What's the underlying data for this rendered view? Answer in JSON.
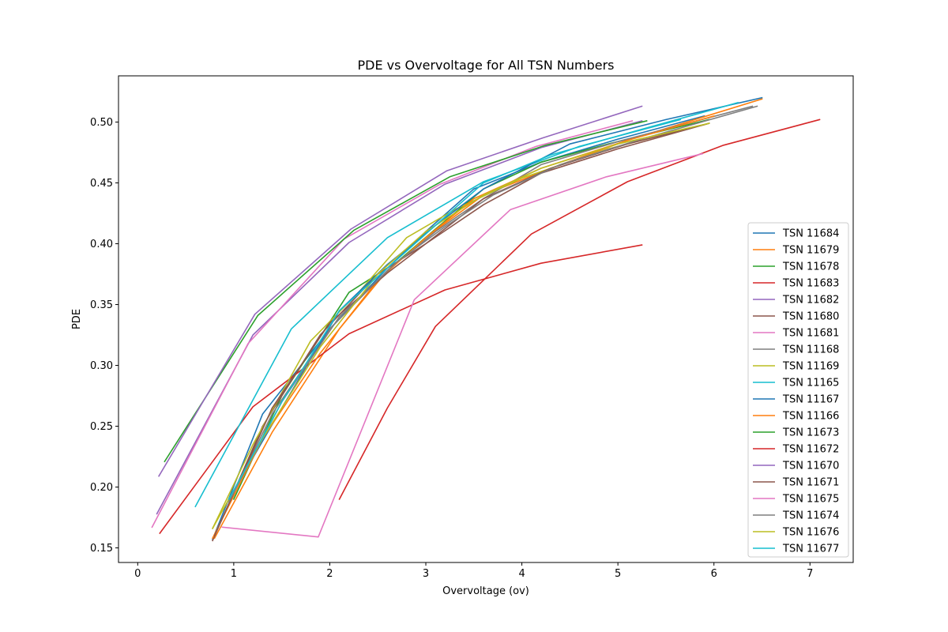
{
  "chart_data": {
    "type": "line",
    "title": "PDE vs Overvoltage for All TSN Numbers",
    "xlabel": "Overvoltage (ov)",
    "ylabel": "PDE",
    "xlim": [
      -0.2,
      7.45
    ],
    "ylim": [
      0.138,
      0.538
    ],
    "xticks": [
      0,
      1,
      2,
      3,
      4,
      5,
      6,
      7
    ],
    "yticks": [
      0.15,
      0.2,
      0.25,
      0.3,
      0.35,
      0.4,
      0.45,
      0.5
    ],
    "ytick_labels": [
      "0.15",
      "0.20",
      "0.25",
      "0.30",
      "0.35",
      "0.40",
      "0.45",
      "0.50"
    ],
    "legend_position": "lower-right",
    "grid": false,
    "series": [
      {
        "name": "TSN 11684",
        "color": "#1f77b4",
        "x": [
          0.78,
          1.3,
          2.0,
          2.6,
          3.0,
          3.5,
          4.2,
          5.0,
          5.9
        ],
        "y": [
          0.157,
          0.26,
          0.33,
          0.38,
          0.41,
          0.445,
          0.467,
          0.486,
          0.505
        ]
      },
      {
        "name": "TSN 11679",
        "color": "#ff7f0e",
        "x": [
          0.8,
          1.4,
          2.1,
          2.6,
          3.0,
          3.6,
          4.3,
          5.1,
          6.5
        ],
        "y": [
          0.158,
          0.245,
          0.33,
          0.378,
          0.405,
          0.44,
          0.462,
          0.485,
          0.519
        ]
      },
      {
        "name": "TSN 11678",
        "color": "#2ca02c",
        "x": [
          1.0,
          1.5,
          2.2,
          2.7,
          3.1,
          3.6,
          4.2,
          4.9,
          5.95
        ],
        "y": [
          0.19,
          0.275,
          0.36,
          0.385,
          0.412,
          0.445,
          0.467,
          0.482,
          0.502
        ]
      },
      {
        "name": "TSN 11683",
        "color": "#d62728",
        "x": [
          0.23,
          1.2,
          2.2,
          3.2,
          4.2,
          5.25
        ],
        "y": [
          0.162,
          0.266,
          0.326,
          0.362,
          0.384,
          0.399
        ]
      },
      {
        "name": "TSN 11682",
        "color": "#9467bd",
        "x": [
          0.2,
          1.2,
          2.2,
          3.2,
          4.2,
          5.25
        ],
        "y": [
          0.178,
          0.325,
          0.401,
          0.449,
          0.479,
          0.501
        ]
      },
      {
        "name": "TSN 11680",
        "color": "#8c564b",
        "x": [
          0.78,
          1.3,
          1.9,
          2.5,
          3.0,
          3.6,
          4.2,
          5.0,
          5.95
        ],
        "y": [
          0.156,
          0.25,
          0.325,
          0.375,
          0.4,
          0.432,
          0.458,
          0.478,
          0.499
        ]
      },
      {
        "name": "TSN 11681",
        "color": "#e377c2",
        "x": [
          0.15,
          1.15,
          2.15,
          3.15,
          4.15,
          5.15
        ],
        "y": [
          0.167,
          0.318,
          0.404,
          0.449,
          0.48,
          0.501
        ]
      },
      {
        "name": "TSN 11168",
        "color": "#7f7f7f",
        "x": [
          0.95,
          1.4,
          2.0,
          2.6,
          3.1,
          3.6,
          4.2,
          5.0,
          6.4
        ],
        "y": [
          0.188,
          0.26,
          0.33,
          0.378,
          0.41,
          0.437,
          0.465,
          0.484,
          0.513
        ]
      },
      {
        "name": "TSN 11169",
        "color": "#bcbd22",
        "x": [
          0.78,
          1.2,
          1.8,
          2.3,
          2.8,
          3.3,
          4.0,
          4.9,
          5.95
        ],
        "y": [
          0.166,
          0.235,
          0.32,
          0.36,
          0.405,
          0.428,
          0.454,
          0.478,
          0.499
        ]
      },
      {
        "name": "TSN 11165",
        "color": "#17becf",
        "x": [
          0.6,
          1.6,
          2.6,
          3.6,
          4.6,
          5.65
        ],
        "y": [
          0.184,
          0.33,
          0.405,
          0.451,
          0.48,
          0.502
        ]
      },
      {
        "name": "TSN 11167",
        "color": "#1f77b4",
        "x": [
          0.95,
          1.5,
          2.1,
          2.6,
          3.1,
          3.6,
          4.5,
          5.5,
          6.5
        ],
        "y": [
          0.19,
          0.265,
          0.345,
          0.383,
          0.415,
          0.445,
          0.482,
          0.502,
          0.52
        ]
      },
      {
        "name": "TSN 11166",
        "color": "#ff7f0e",
        "x": [
          0.78,
          1.3,
          1.9,
          2.5,
          3.0,
          3.5,
          4.2,
          5.1,
          6.0
        ],
        "y": [
          0.158,
          0.24,
          0.31,
          0.37,
          0.405,
          0.437,
          0.462,
          0.485,
          0.505
        ]
      },
      {
        "name": "TSN 11673",
        "color": "#2ca02c",
        "x": [
          0.28,
          1.25,
          2.25,
          3.25,
          4.25,
          5.3
        ],
        "y": [
          0.221,
          0.341,
          0.411,
          0.455,
          0.481,
          0.501
        ]
      },
      {
        "name": "TSN 11672",
        "color": "#d62728",
        "x": [
          2.1,
          2.6,
          3.1,
          3.6,
          4.1,
          5.1,
          6.1,
          7.1
        ],
        "y": [
          0.19,
          0.265,
          0.332,
          0.37,
          0.408,
          0.451,
          0.481,
          0.502
        ]
      },
      {
        "name": "TSN 11670",
        "color": "#9467bd",
        "x": [
          0.22,
          1.22,
          2.22,
          3.22,
          4.22,
          5.25
        ],
        "y": [
          0.209,
          0.342,
          0.412,
          0.46,
          0.487,
          0.513
        ]
      },
      {
        "name": "TSN 11671",
        "color": "#8c564b",
        "x": [
          0.8,
          1.4,
          2.0,
          2.6,
          3.0,
          3.6,
          4.3,
          5.1,
          5.95
        ],
        "y": [
          0.16,
          0.265,
          0.335,
          0.376,
          0.4,
          0.437,
          0.462,
          0.482,
          0.499
        ]
      },
      {
        "name": "TSN 11675",
        "color": "#e377c2",
        "x": [
          0.88,
          1.88,
          2.88,
          3.88,
          4.88,
          5.88
        ],
        "y": [
          0.167,
          0.159,
          0.354,
          0.428,
          0.455,
          0.474
        ]
      },
      {
        "name": "TSN 11674",
        "color": "#7f7f7f",
        "x": [
          0.95,
          1.5,
          2.1,
          2.7,
          3.2,
          3.7,
          4.4,
          5.2,
          6.45
        ],
        "y": [
          0.188,
          0.27,
          0.34,
          0.385,
          0.414,
          0.44,
          0.465,
          0.485,
          0.513
        ]
      },
      {
        "name": "TSN 11676",
        "color": "#bcbd22",
        "x": [
          0.78,
          1.3,
          1.9,
          2.5,
          3.0,
          3.6,
          4.2,
          5.0,
          5.95
        ],
        "y": [
          0.166,
          0.24,
          0.315,
          0.375,
          0.41,
          0.44,
          0.462,
          0.482,
          0.499
        ]
      },
      {
        "name": "TSN 11677",
        "color": "#17becf",
        "x": [
          0.95,
          1.5,
          2.1,
          2.6,
          3.1,
          3.6,
          4.3,
          5.2,
          6.25
        ],
        "y": [
          0.19,
          0.27,
          0.345,
          0.38,
          0.415,
          0.45,
          0.473,
          0.493,
          0.516
        ]
      }
    ]
  }
}
